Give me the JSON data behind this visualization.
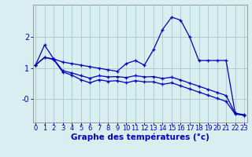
{
  "background_color": "#d8eef0",
  "grid_color": "#a8c8cc",
  "line_color": "#0000bb",
  "xlabel": "Graphe des températures (°c)",
  "xlabel_fontsize": 7.5,
  "xlabel_color": "#0000bb",
  "tick_color": "#0000bb",
  "tick_fontsize": 6.0,
  "ytick_fontsize": 7.0,
  "ylim": [
    -0.75,
    3.05
  ],
  "xlim": [
    -0.3,
    23.3
  ],
  "xticks": [
    0,
    1,
    2,
    3,
    4,
    5,
    6,
    7,
    8,
    9,
    10,
    11,
    12,
    13,
    14,
    15,
    16,
    17,
    18,
    19,
    20,
    21,
    22,
    23
  ],
  "yticks": [
    0,
    1,
    2
  ],
  "ytick_labels": [
    "-0",
    "1",
    "2"
  ],
  "series1_x": [
    0,
    1,
    2,
    3,
    4,
    5,
    6,
    7,
    8,
    9,
    10,
    11,
    12,
    13,
    14,
    15,
    16,
    17,
    18,
    19,
    20,
    21,
    22,
    23
  ],
  "series1_y": [
    1.1,
    1.75,
    1.3,
    1.2,
    1.15,
    1.1,
    1.05,
    1.0,
    0.95,
    0.9,
    1.15,
    1.25,
    1.1,
    1.6,
    2.25,
    2.65,
    2.55,
    2.0,
    1.25,
    1.25,
    1.25,
    1.25,
    -0.45,
    -0.52
  ],
  "series2_x": [
    0,
    1,
    2,
    3,
    4,
    5,
    6,
    7,
    8,
    9,
    10,
    11,
    12,
    13,
    14,
    15,
    16,
    17,
    18,
    19,
    20,
    21,
    22,
    23
  ],
  "series2_y": [
    1.1,
    1.35,
    1.3,
    0.92,
    0.85,
    0.76,
    0.68,
    0.76,
    0.72,
    0.73,
    0.7,
    0.76,
    0.72,
    0.73,
    0.67,
    0.71,
    0.62,
    0.52,
    0.42,
    0.32,
    0.22,
    0.12,
    -0.45,
    -0.5
  ],
  "series3_x": [
    0,
    1,
    2,
    3,
    4,
    5,
    6,
    7,
    8,
    9,
    10,
    11,
    12,
    13,
    14,
    15,
    16,
    17,
    18,
    19,
    20,
    21,
    22,
    23
  ],
  "series3_y": [
    1.1,
    1.35,
    1.28,
    0.88,
    0.78,
    0.63,
    0.53,
    0.63,
    0.58,
    0.6,
    0.53,
    0.6,
    0.56,
    0.56,
    0.48,
    0.53,
    0.43,
    0.33,
    0.23,
    0.13,
    0.03,
    -0.07,
    -0.48,
    -0.52
  ]
}
